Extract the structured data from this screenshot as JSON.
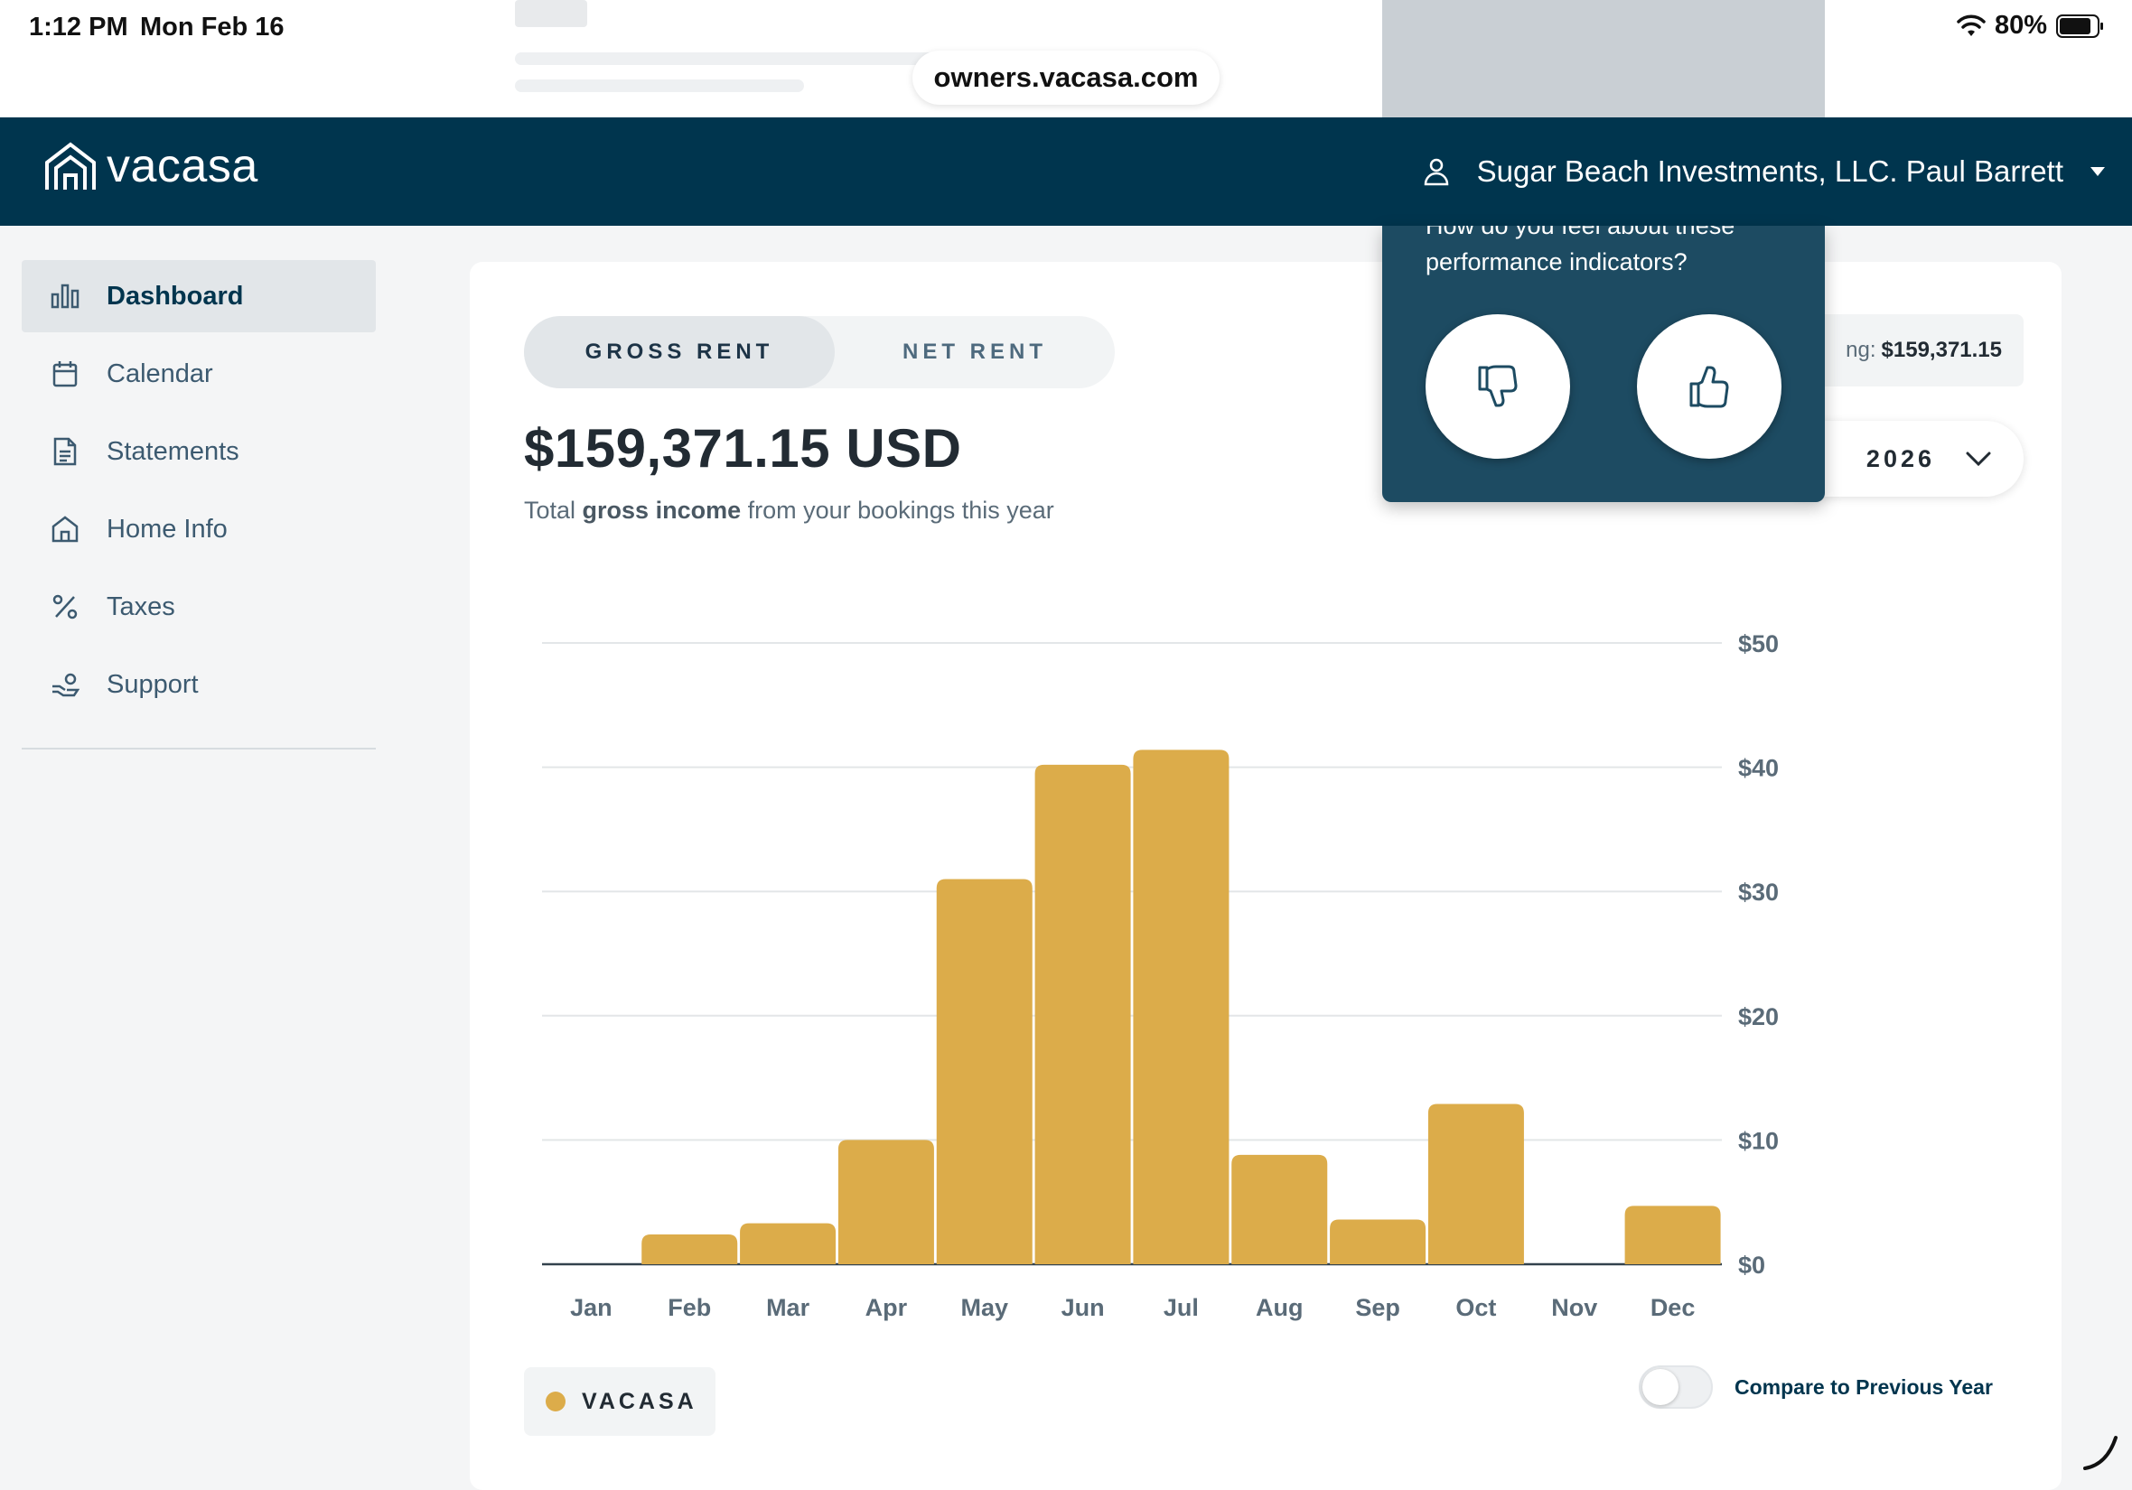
{
  "status_bar": {
    "time": "1:12 PM",
    "date": "Mon Feb 16",
    "battery": "80%",
    "url": "owners.vacasa.com"
  },
  "header": {
    "logo_text": "vacasa",
    "account_name": "Sugar Beach Investments, LLC. Paul Barrett"
  },
  "sidebar": {
    "items": [
      {
        "label": "Dashboard",
        "icon": "bar-chart-icon",
        "active": true
      },
      {
        "label": "Calendar",
        "icon": "calendar-icon",
        "active": false
      },
      {
        "label": "Statements",
        "icon": "document-icon",
        "active": false
      },
      {
        "label": "Home Info",
        "icon": "home-icon",
        "active": false
      },
      {
        "label": "Taxes",
        "icon": "percent-icon",
        "active": false
      },
      {
        "label": "Support",
        "icon": "support-icon",
        "active": false
      }
    ]
  },
  "main": {
    "tabs": [
      {
        "label": "GROSS RENT",
        "active": true
      },
      {
        "label": "NET RENT",
        "active": false
      }
    ],
    "total_amount": "$159,371.15 USD",
    "subtitle_pre": "Total ",
    "subtitle_bold": "gross income",
    "subtitle_post": " from your bookings this year",
    "ytd_label_partial": "ng:",
    "ytd_value": "$159,371.15",
    "year": "2026",
    "legend_label": "VACASA",
    "compare_label": "Compare to Previous Year"
  },
  "feedback": {
    "question": "How do you feel about these performance indicators?"
  },
  "colors": {
    "brand": "#00354e",
    "bar": "#dcac4a",
    "popup": "#1d4b62"
  },
  "chart_data": {
    "type": "bar",
    "categories": [
      "Jan",
      "Feb",
      "Mar",
      "Apr",
      "May",
      "Jun",
      "Jul",
      "Aug",
      "Sep",
      "Oct",
      "Nov",
      "Dec"
    ],
    "values": [
      0,
      2400,
      3300,
      10000,
      31000,
      40200,
      41400,
      8800,
      3600,
      12900,
      0,
      4700
    ],
    "y_tick_labels": [
      "$0",
      "$10",
      "$20",
      "$30",
      "$40",
      "$50"
    ],
    "ylim": [
      0,
      50000
    ],
    "grid": true
  }
}
